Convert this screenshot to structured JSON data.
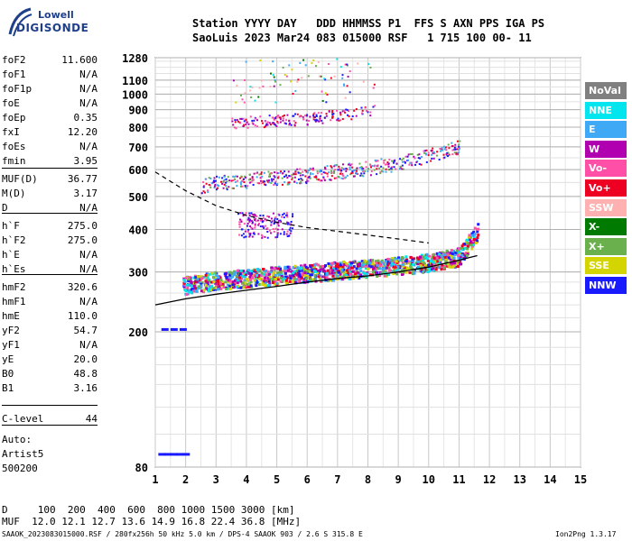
{
  "logo": {
    "line1": "Lowell",
    "line2": "DIGISONDE"
  },
  "header": {
    "labels": "Station YYYY DAY   DDD HHMMSS P1  FFS S AXN PPS IGA PS",
    "values": "SaoLuis 2023 Mar24 083 015000 RSF   1 715 100 00- 11"
  },
  "params": [
    {
      "name": "foF2",
      "value": "11.600"
    },
    {
      "name": "foF1",
      "value": "N/A"
    },
    {
      "name": "foF1p",
      "value": "N/A"
    },
    {
      "name": "foE",
      "value": "N/A"
    },
    {
      "name": "foEp",
      "value": "0.35"
    },
    {
      "name": "fxI",
      "value": "12.20"
    },
    {
      "name": "foEs",
      "value": "N/A"
    },
    {
      "name": "fmin",
      "value": "3.95"
    },
    {
      "name": "MUF(D)",
      "value": "36.77"
    },
    {
      "name": "M(D)",
      "value": "3.17"
    },
    {
      "name": "D",
      "value": "N/A"
    },
    {
      "name": "h`F",
      "value": "275.0"
    },
    {
      "name": "h`F2",
      "value": "275.0"
    },
    {
      "name": "h`E",
      "value": "N/A"
    },
    {
      "name": "h`Es",
      "value": "N/A"
    },
    {
      "name": "hmF2",
      "value": "320.6"
    },
    {
      "name": "hmF1",
      "value": "N/A"
    },
    {
      "name": "hmE",
      "value": "110.0"
    },
    {
      "name": "yF2",
      "value": "54.7"
    },
    {
      "name": "yF1",
      "value": "N/A"
    },
    {
      "name": "yE",
      "value": "20.0"
    },
    {
      "name": "B0",
      "value": "48.8"
    },
    {
      "name": "B1",
      "value": "3.16"
    },
    {
      "name": "C-level",
      "value": "44"
    }
  ],
  "auto": {
    "line1": "Auto:",
    "line2": "Artist5",
    "line3": "500200"
  },
  "legend": [
    {
      "label": "NoVal",
      "color": "#808080"
    },
    {
      "label": "NNE",
      "color": "#00e5ee"
    },
    {
      "label": "E",
      "color": "#3fa9f5"
    },
    {
      "label": "W",
      "color": "#b000b0"
    },
    {
      "label": "Vo-",
      "color": "#ff4fa6"
    },
    {
      "label": "Vo+",
      "color": "#ee0022"
    },
    {
      "label": "SSW",
      "color": "#ffb0b0"
    },
    {
      "label": "X-",
      "color": "#007a00"
    },
    {
      "label": "X+",
      "color": "#6ab04c"
    },
    {
      "label": "SSE",
      "color": "#d4d400"
    },
    {
      "label": "NNW",
      "color": "#1a1aff"
    }
  ],
  "bottom": {
    "d_row": "D     100  200  400  600  800 1000 1500 3000 [km]",
    "muf_row": "MUF  12.0 12.1 12.7 13.6 14.9 16.8 22.4 36.8 [MHz]",
    "footer_left": "SAAOK_2023083015000.RSF / 280fx256h 50 kHz 5.0 km / DPS-4 SAAOK 903 / 2.6 S 315.8 E",
    "footer_right": "Ion2Png 1.3.17"
  },
  "chart_data": {
    "type": "scatter",
    "title": "",
    "xlabel": "",
    "ylabel": "",
    "xlim": [
      1,
      15
    ],
    "ylim": [
      80,
      1280
    ],
    "y_scale": "log",
    "grid": true,
    "xticks": [
      1,
      2,
      3,
      4,
      5,
      6,
      7,
      8,
      9,
      10,
      11,
      12,
      13,
      14,
      15
    ],
    "yticks": [
      80,
      200,
      300,
      400,
      500,
      600,
      700,
      800,
      900,
      1000,
      1100,
      1280
    ],
    "trace_f1": {
      "x": [
        1.9,
        2.5,
        3,
        4,
        5,
        6,
        7,
        8,
        9,
        10,
        11,
        11.6
      ],
      "y": [
        275,
        280,
        285,
        290,
        295,
        300,
        305,
        310,
        315,
        322,
        335,
        400
      ]
    },
    "trace_f2": {
      "x": [
        2.5,
        3,
        4,
        5,
        6,
        7,
        8,
        9,
        10,
        11
      ],
      "y": [
        540,
        550,
        560,
        570,
        580,
        595,
        610,
        630,
        660,
        700
      ]
    },
    "trace_f3": {
      "x": [
        3.5,
        4,
        5,
        6,
        7,
        8,
        8.2
      ],
      "y": [
        820,
        830,
        840,
        850,
        870,
        900,
        910
      ]
    },
    "profile_solid": {
      "x": [
        1,
        2,
        3,
        4,
        5,
        6,
        7,
        8,
        9,
        10,
        11,
        11.6
      ],
      "y": [
        240,
        250,
        258,
        265,
        272,
        280,
        287,
        292,
        300,
        310,
        325,
        335
      ]
    },
    "profile_dashed": {
      "x": [
        1,
        2,
        3,
        4,
        5,
        6,
        7,
        8,
        9,
        10
      ],
      "y": [
        590,
        520,
        470,
        440,
        420,
        405,
        395,
        385,
        375,
        365
      ]
    },
    "es_points": {
      "x": [
        1.1,
        1.3,
        1.5,
        1.7,
        1.9,
        1.2,
        1.5,
        1.8
      ],
      "y": [
        88,
        88,
        88,
        88,
        88,
        205,
        205,
        205
      ]
    }
  }
}
